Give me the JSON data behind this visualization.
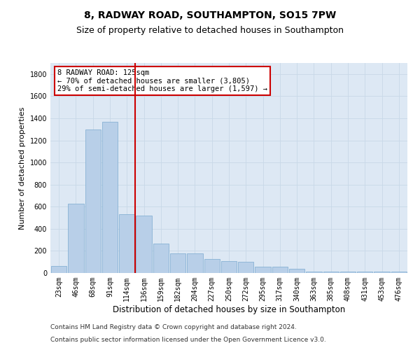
{
  "title1": "8, RADWAY ROAD, SOUTHAMPTON, SO15 7PW",
  "title2": "Size of property relative to detached houses in Southampton",
  "xlabel": "Distribution of detached houses by size in Southampton",
  "ylabel": "Number of detached properties",
  "categories": [
    "23sqm",
    "46sqm",
    "68sqm",
    "91sqm",
    "114sqm",
    "136sqm",
    "159sqm",
    "182sqm",
    "204sqm",
    "227sqm",
    "250sqm",
    "272sqm",
    "295sqm",
    "317sqm",
    "340sqm",
    "363sqm",
    "385sqm",
    "408sqm",
    "431sqm",
    "453sqm",
    "476sqm"
  ],
  "values": [
    65,
    630,
    1300,
    1370,
    530,
    520,
    265,
    175,
    175,
    125,
    110,
    100,
    55,
    55,
    40,
    15,
    15,
    10,
    10,
    10,
    10
  ],
  "bar_color": "#b8cfe8",
  "bar_edge_color": "#7aaad0",
  "grid_color": "#c8d8e8",
  "bg_color": "#dde8f4",
  "annotation_text": "8 RADWAY ROAD: 125sqm\n← 70% of detached houses are smaller (3,805)\n29% of semi-detached houses are larger (1,597) →",
  "annotation_box_color": "#ffffff",
  "annotation_box_edge": "#cc0000",
  "vline_color": "#cc0000",
  "ylim": [
    0,
    1900
  ],
  "yticks": [
    0,
    200,
    400,
    600,
    800,
    1000,
    1200,
    1400,
    1600,
    1800
  ],
  "footer1": "Contains HM Land Registry data © Crown copyright and database right 2024.",
  "footer2": "Contains public sector information licensed under the Open Government Licence v3.0.",
  "title1_fontsize": 10,
  "title2_fontsize": 9,
  "xlabel_fontsize": 8.5,
  "ylabel_fontsize": 8,
  "tick_fontsize": 7,
  "footer_fontsize": 6.5,
  "annotation_fontsize": 7.5
}
